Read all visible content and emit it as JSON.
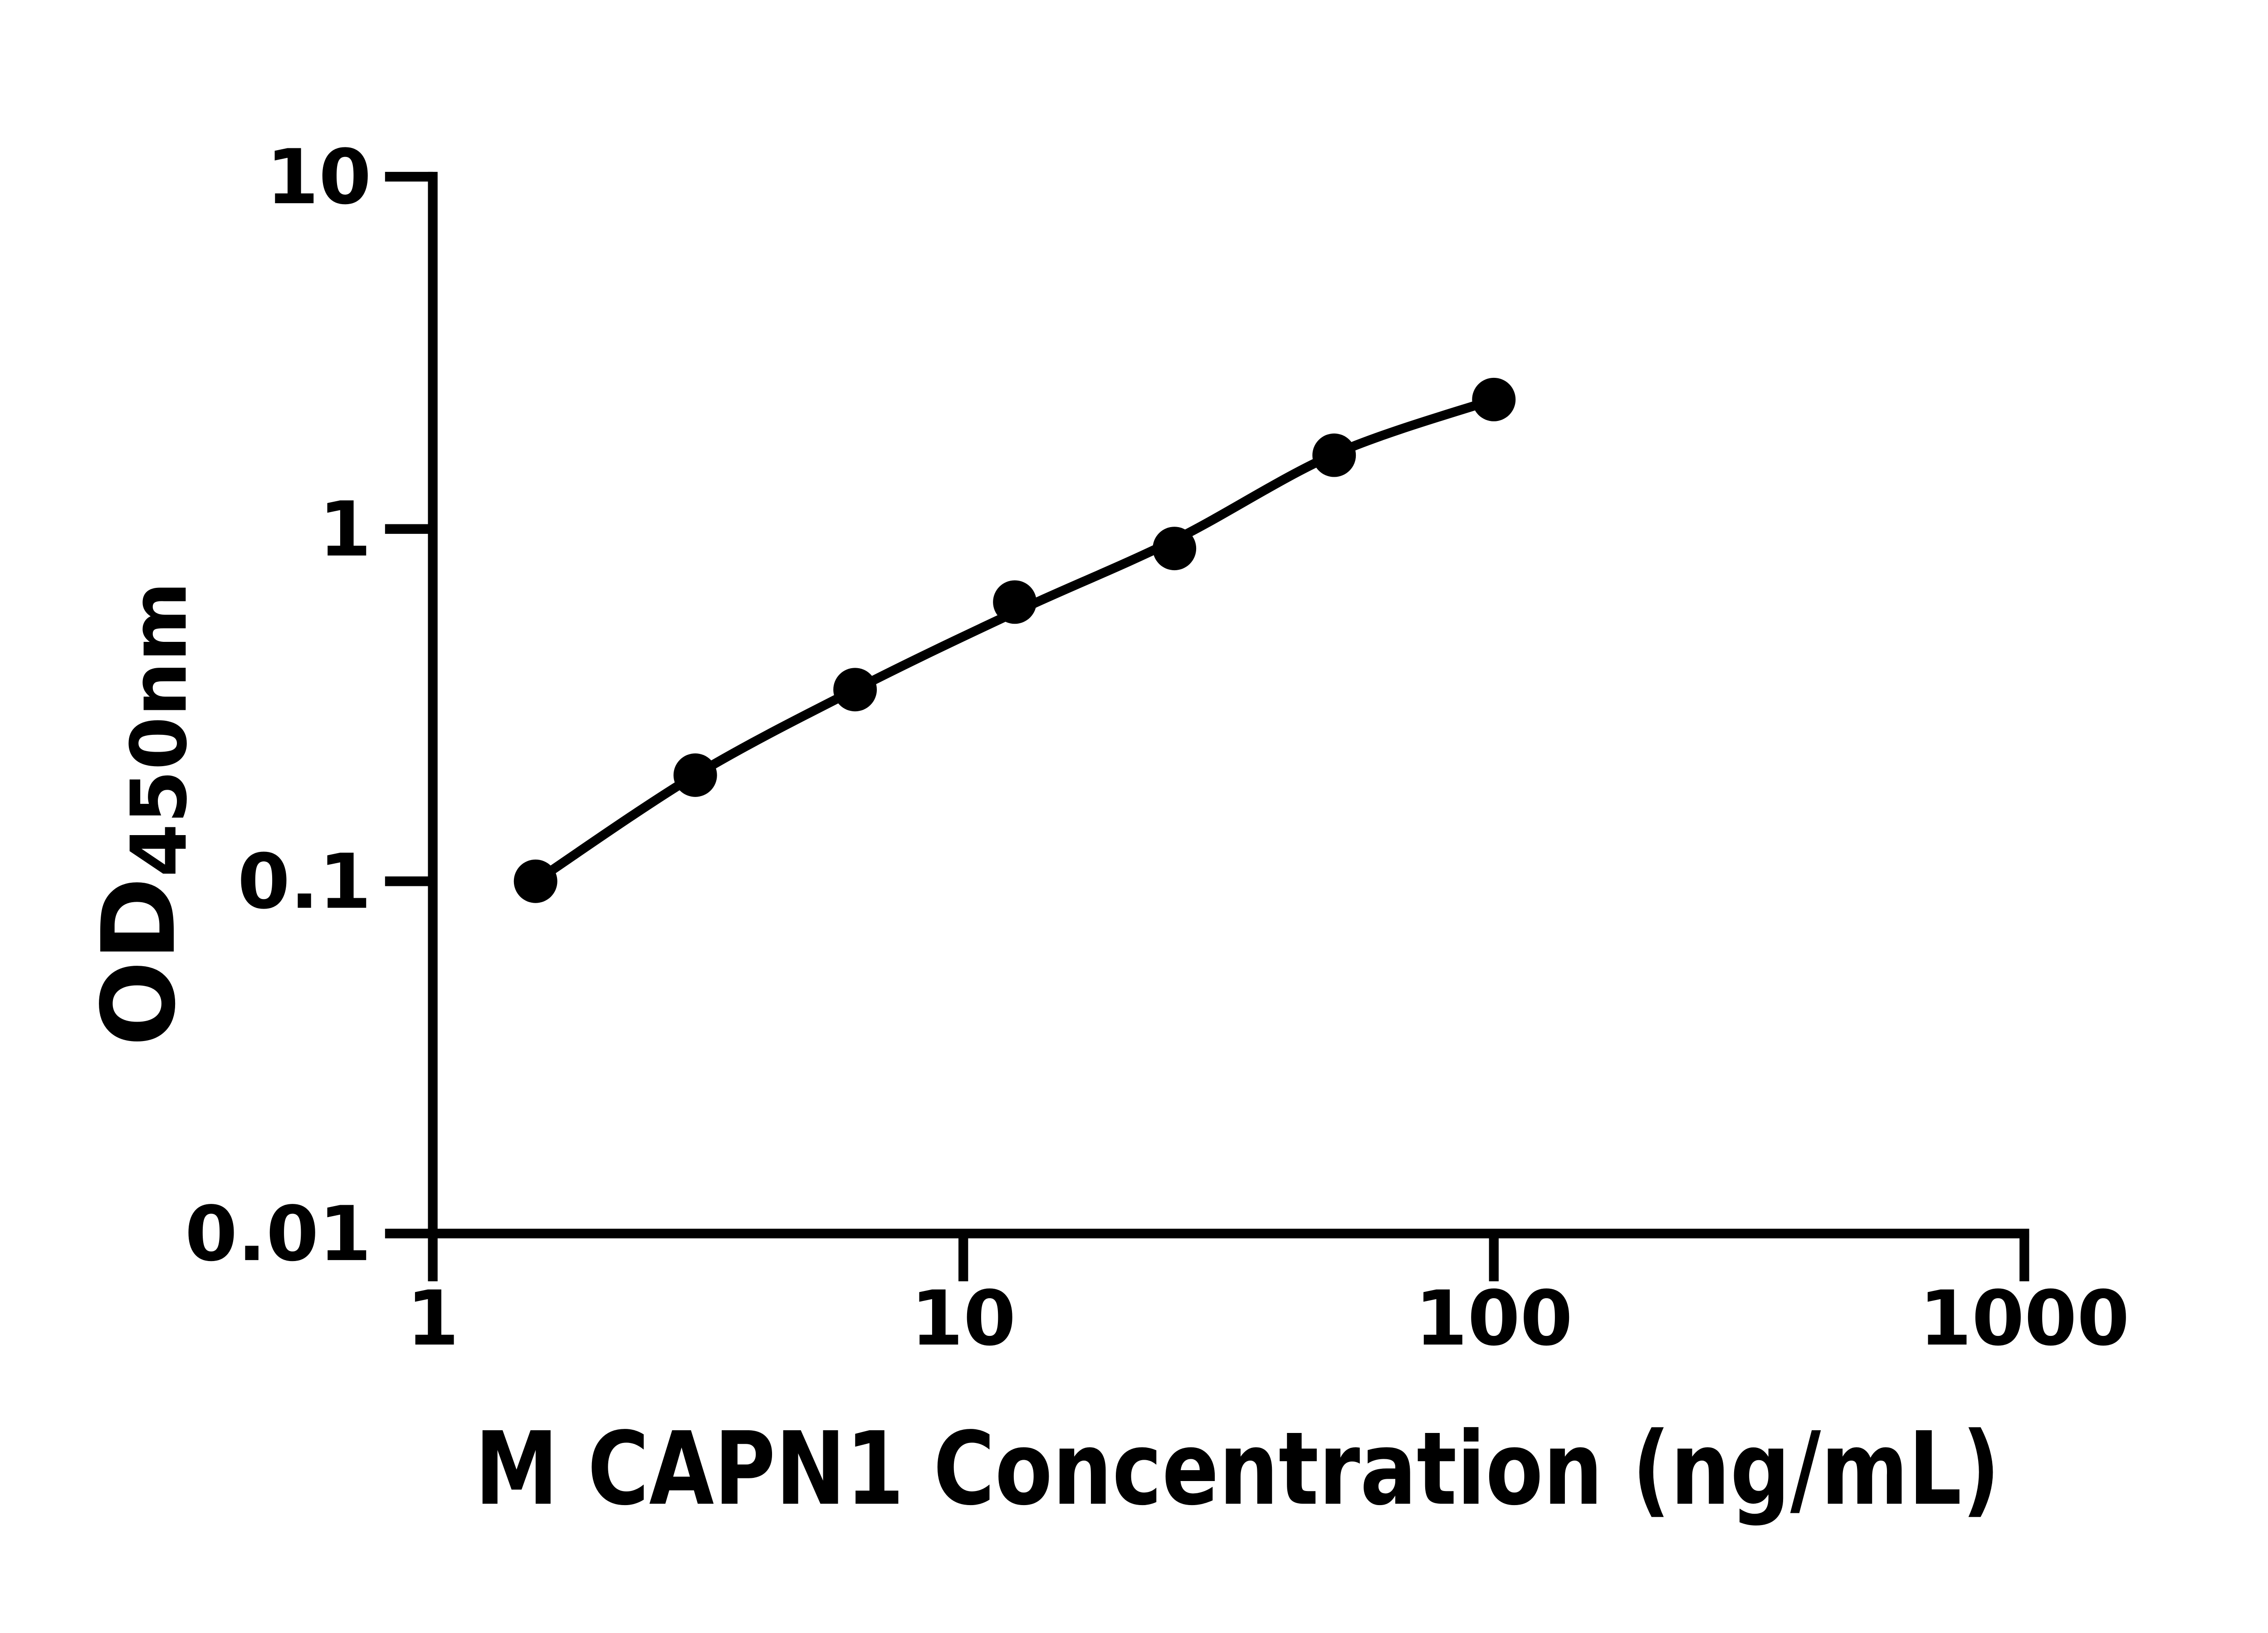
{
  "figure": {
    "background_color": "#ffffff",
    "ink_color": "#000000",
    "description": "ELISA standard curve, log-log scatter plot with fitted line and filled circular markers"
  },
  "chart_data": {
    "type": "scatter",
    "title": "",
    "xlabel": "M CAPN1 Concentration (ng/mL)",
    "ylabel_main": "OD",
    "ylabel_sub": "450nm",
    "x_scale": "log10",
    "y_scale": "log10",
    "xlim": [
      1,
      1000
    ],
    "ylim": [
      0.01,
      10
    ],
    "x_ticks": [
      1,
      10,
      100,
      1000
    ],
    "x_tick_labels": [
      "1",
      "10",
      "100",
      "1000"
    ],
    "y_ticks": [
      10,
      1,
      0.1,
      0.01
    ],
    "y_tick_labels": [
      "10",
      "1",
      "0.1",
      "0.01"
    ],
    "grid": false,
    "legend": "none",
    "series": [
      {
        "name": "M CAPN1 standard curve points",
        "marker": "filled-circle",
        "color": "#000000",
        "x": [
          1.5625,
          3.125,
          6.25,
          12.5,
          25,
          50,
          100
        ],
        "y": [
          0.1,
          0.2,
          0.35,
          0.62,
          0.88,
          1.62,
          2.33
        ]
      }
    ],
    "fit_curve": {
      "name": "fitted standard curve line",
      "color": "#000000",
      "x": [
        1.5625,
        3.125,
        6.25,
        12.5,
        25,
        50,
        100
      ],
      "y": [
        0.1,
        0.2,
        0.35,
        0.58,
        0.93,
        1.63,
        2.33
      ]
    }
  }
}
